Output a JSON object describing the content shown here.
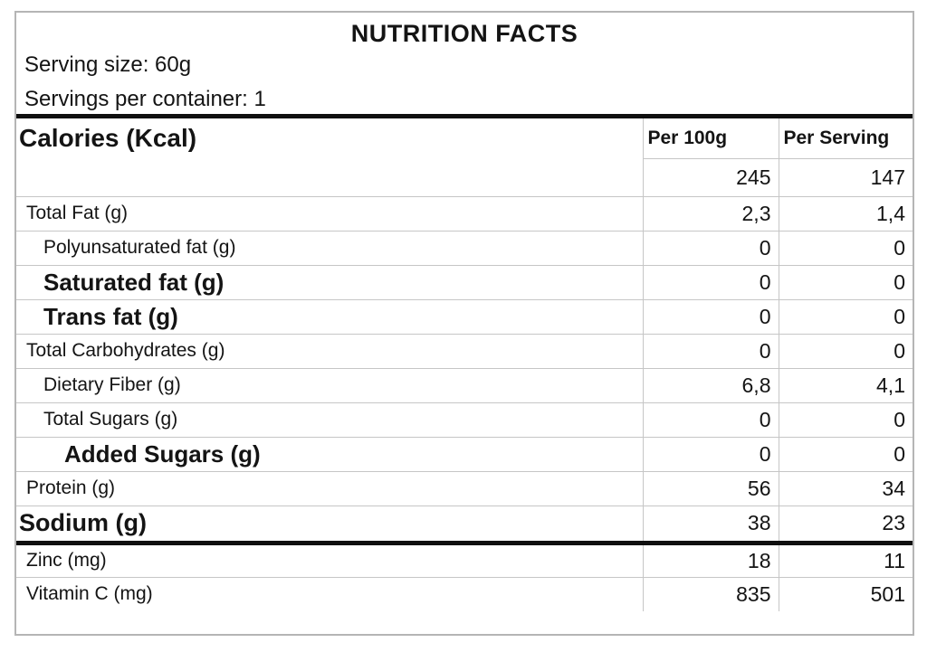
{
  "nutrition_label": {
    "title": "NUTRITION FACTS",
    "serving_size": "Serving size: 60g",
    "servings_per_container": "Servings per container: 1",
    "table": {
      "group_header": "Calories (Kcal)",
      "columns": [
        "Per 100g",
        "Per Serving"
      ],
      "calories": {
        "per_100g": "245",
        "per_serving": "147"
      },
      "rows": [
        {
          "label": "Total Fat (g)",
          "per_100g": "2,3",
          "per_serving": "1,4",
          "bold": false,
          "indent": 1
        },
        {
          "label": "Polyunsaturated fat (g)",
          "per_100g": "0",
          "per_serving": "0",
          "bold": false,
          "indent": 2
        },
        {
          "label": "Saturated fat (g)",
          "per_100g": "0",
          "per_serving": "0",
          "bold": true,
          "indent": 2
        },
        {
          "label": "Trans fat (g)",
          "per_100g": "0",
          "per_serving": "0",
          "bold": true,
          "indent": 2
        },
        {
          "label": "Total Carbohydrates (g)",
          "per_100g": "0",
          "per_serving": "0",
          "bold": false,
          "indent": 1
        },
        {
          "label": "Dietary Fiber (g)",
          "per_100g": "6,8",
          "per_serving": "4,1",
          "bold": false,
          "indent": 2
        },
        {
          "label": "Total Sugars (g)",
          "per_100g": "0",
          "per_serving": "0",
          "bold": false,
          "indent": 2
        },
        {
          "label": "Added Sugars (g)",
          "per_100g": "0",
          "per_serving": "0",
          "bold": true,
          "indent": 3
        },
        {
          "label": "Protein (g)",
          "per_100g": "56",
          "per_serving": "34",
          "bold": false,
          "indent": 1
        },
        {
          "label": "Sodium (g)",
          "per_100g": "38",
          "per_serving": "23",
          "bold": true,
          "indent": 0,
          "section_end": true
        },
        {
          "label": "Zinc (mg)",
          "per_100g": "18",
          "per_serving": "11",
          "bold": false,
          "indent": 1
        },
        {
          "label": "Vitamin C (mg)",
          "per_100g": "835",
          "per_serving": "501",
          "bold": false,
          "indent": 1
        }
      ]
    },
    "colors": {
      "text": "#141414",
      "thick_rule": "#0f0f0f",
      "grid_line": "#c6c6c6",
      "outer_border": "#b5b5b5",
      "background": "#ffffff"
    }
  }
}
